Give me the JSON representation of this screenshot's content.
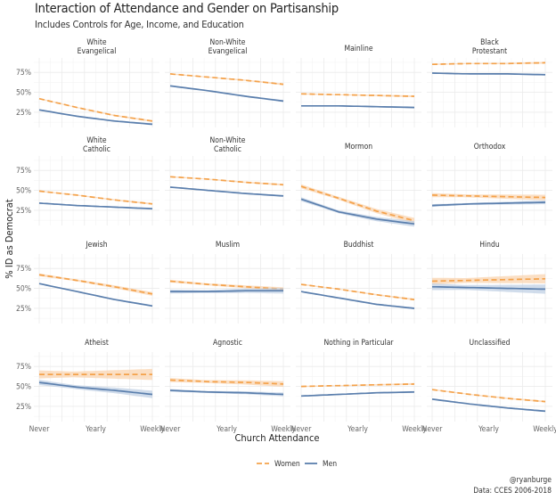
{
  "header": {
    "title": "Interaction of Attendance and Gender on Partisanship",
    "subtitle": "Includes Controls for Age, Income, and Education"
  },
  "caption": {
    "line1": "@ryanburge",
    "line2": "Data: CCES 2006-2018"
  },
  "legend": {
    "items": [
      {
        "label": "Women",
        "color": "#f4a24b",
        "style": "dashed"
      },
      {
        "label": "Men",
        "color": "#5b7fad",
        "style": "solid"
      }
    ]
  },
  "chart_data": {
    "type": "line",
    "title": "Interaction of Attendance and Gender on Partisanship",
    "subtitle": "Includes Controls for Age, Income, and Education",
    "xlabel": "Church Attendance",
    "ylabel": "% ID as Democrat",
    "x_ticks": [
      "Never",
      "Yearly",
      "Weekly"
    ],
    "x_range": [
      1,
      6
    ],
    "y_ticks": [
      "25%",
      "50%",
      "75%"
    ],
    "y_tick_values": [
      0.25,
      0.5,
      0.75
    ],
    "ylim": [
      0.06,
      0.93
    ],
    "grid": true,
    "legend_position": "bottom",
    "series_names": [
      "Women",
      "Men"
    ],
    "panels": [
      {
        "label": "White\nEvangelical",
        "women": [
          0.42,
          0.31,
          0.21,
          0.14
        ],
        "men": [
          0.28,
          0.2,
          0.14,
          0.1
        ],
        "women_ci": 0.01,
        "men_ci": 0.01
      },
      {
        "label": "Non-White\nEvangelical",
        "women": [
          0.73,
          0.69,
          0.65,
          0.6
        ],
        "men": [
          0.58,
          0.52,
          0.45,
          0.39
        ],
        "women_ci": 0.01,
        "men_ci": 0.01
      },
      {
        "label": "Mainline",
        "women": [
          0.48,
          0.47,
          0.46,
          0.45
        ],
        "men": [
          0.33,
          0.33,
          0.32,
          0.31
        ],
        "women_ci": 0.01,
        "men_ci": 0.01
      },
      {
        "label": "Black\nProtestant",
        "women": [
          0.85,
          0.86,
          0.86,
          0.87
        ],
        "men": [
          0.74,
          0.73,
          0.73,
          0.72
        ],
        "women_ci": 0.01,
        "men_ci": 0.01
      },
      {
        "label": "White\nCatholic",
        "women": [
          0.49,
          0.44,
          0.38,
          0.33
        ],
        "men": [
          0.34,
          0.31,
          0.29,
          0.27
        ],
        "women_ci": 0.01,
        "men_ci": 0.01
      },
      {
        "label": "Non-White\nCatholic",
        "women": [
          0.67,
          0.64,
          0.6,
          0.57
        ],
        "men": [
          0.54,
          0.5,
          0.46,
          0.43
        ],
        "women_ci": 0.01,
        "men_ci": 0.01
      },
      {
        "label": "Mormon",
        "women": [
          0.55,
          0.4,
          0.24,
          0.12
        ],
        "men": [
          0.39,
          0.23,
          0.14,
          0.08
        ],
        "women_ci": 0.03,
        "men_ci": 0.03
      },
      {
        "label": "Orthodox",
        "women": [
          0.44,
          0.43,
          0.42,
          0.41
        ],
        "men": [
          0.31,
          0.33,
          0.34,
          0.35
        ],
        "women_ci": 0.03,
        "men_ci": 0.02
      },
      {
        "label": "Jewish",
        "women": [
          0.67,
          0.6,
          0.52,
          0.43
        ],
        "men": [
          0.56,
          0.46,
          0.36,
          0.28
        ],
        "women_ci": 0.02,
        "men_ci": 0.01
      },
      {
        "label": "Muslim",
        "women": [
          0.59,
          0.55,
          0.52,
          0.49
        ],
        "men": [
          0.46,
          0.46,
          0.47,
          0.47
        ],
        "women_ci": 0.02,
        "men_ci": 0.03
      },
      {
        "label": "Buddhist",
        "women": [
          0.55,
          0.49,
          0.42,
          0.36
        ],
        "men": [
          0.46,
          0.38,
          0.3,
          0.25
        ],
        "women_ci": 0.01,
        "men_ci": 0.01
      },
      {
        "label": "Hindu",
        "women": [
          0.59,
          0.6,
          0.61,
          0.62
        ],
        "men": [
          0.52,
          0.51,
          0.5,
          0.49
        ],
        "women_ci": 0.05,
        "men_ci": 0.05
      },
      {
        "label": "Atheist",
        "women": [
          0.65,
          0.65,
          0.65,
          0.65
        ],
        "men": [
          0.55,
          0.49,
          0.45,
          0.4
        ],
        "women_ci": 0.06,
        "men_ci": 0.04
      },
      {
        "label": "Agnostic",
        "women": [
          0.58,
          0.56,
          0.55,
          0.53
        ],
        "men": [
          0.45,
          0.43,
          0.42,
          0.4
        ],
        "women_ci": 0.03,
        "men_ci": 0.02
      },
      {
        "label": "Nothing in Particular",
        "women": [
          0.5,
          0.51,
          0.52,
          0.53
        ],
        "men": [
          0.38,
          0.4,
          0.42,
          0.43
        ],
        "women_ci": 0.01,
        "men_ci": 0.01
      },
      {
        "label": "Unclassified",
        "women": [
          0.46,
          0.4,
          0.35,
          0.31
        ],
        "men": [
          0.34,
          0.28,
          0.23,
          0.19
        ],
        "women_ci": 0.01,
        "men_ci": 0.01
      }
    ],
    "x_values": [
      1,
      2.667,
      4.333,
      6
    ]
  },
  "colors": {
    "women": "#f4a24b",
    "women_band": "#f9d2ab",
    "men": "#5b7fad",
    "men_band": "#bccde2",
    "grid_major": "#ebebeb",
    "grid_minor": "#f4f4f4"
  }
}
